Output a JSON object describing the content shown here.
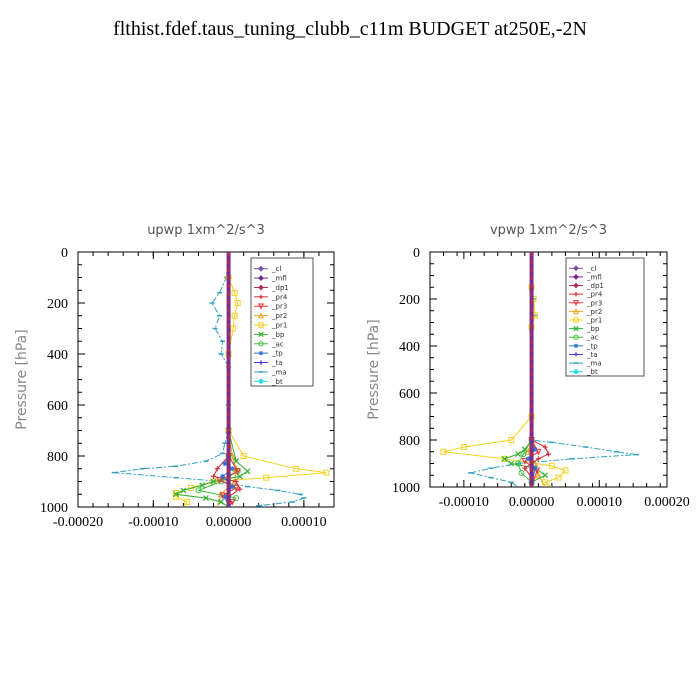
{
  "page_title": "flthist.fdef.taus_tuning_clubb_c11m  BUDGET at250E,-2N",
  "legend_items": [
    {
      "label": "_cl",
      "color": "#7b52ab",
      "marker": "diamond"
    },
    {
      "label": "_mfl",
      "color": "#7b2d8e",
      "marker": "diamond"
    },
    {
      "label": "_dp1",
      "color": "#b0304f",
      "marker": "diamond"
    },
    {
      "label": "_pr4",
      "color": "#d0303a",
      "marker": "plus"
    },
    {
      "label": "_pr3",
      "color": "#ee3333",
      "marker": "tri-down"
    },
    {
      "label": "_pr2",
      "color": "#f0a020",
      "marker": "tri-up"
    },
    {
      "label": "_pr1",
      "color": "#f5d020",
      "marker": "square"
    },
    {
      "label": "_bp",
      "color": "#30b030",
      "marker": "x"
    },
    {
      "label": "_ac",
      "color": "#40c040",
      "marker": "circle"
    },
    {
      "label": "_tp",
      "color": "#3070d0",
      "marker": "star"
    },
    {
      "label": "_ta",
      "color": "#3a3ad0",
      "marker": "plus"
    },
    {
      "label": "_ma",
      "color": "#30a0c0",
      "marker": "dash"
    },
    {
      "label": "_bt",
      "color": "#20e0e0",
      "marker": "diamond"
    }
  ],
  "chart_data": [
    {
      "type": "line",
      "title": "upwp   1xm^2/s^3",
      "ylabel": "Pressure [hPa]",
      "xlabel": "",
      "xlim": [
        -0.0002,
        0.00014
      ],
      "ylim": [
        1000,
        0
      ],
      "xticks": [
        -0.0002,
        -0.0001,
        0.0,
        0.0001
      ],
      "xtick_labels": [
        "-0.00020",
        "-0.00010",
        "0.00000",
        "0.00010"
      ],
      "yticks": [
        0,
        200,
        400,
        600,
        800,
        1000
      ],
      "ytick_labels": [
        "0",
        "200",
        "400",
        "600",
        "800",
        "1000"
      ],
      "legend_position": "top-right",
      "series": [
        {
          "name": "_ma",
          "points": [
            [
              0,
              0
            ],
            [
              -3e-06,
              100
            ],
            [
              -1.2e-05,
              160
            ],
            [
              -2.2e-05,
              200
            ],
            [
              -1.2e-05,
              250
            ],
            [
              -1.8e-05,
              300
            ],
            [
              -8e-06,
              350
            ],
            [
              -1e-05,
              400
            ],
            [
              0,
              450
            ],
            [
              0,
              600
            ],
            [
              0,
              700
            ],
            [
              -5e-06,
              750
            ],
            [
              -8e-06,
              790
            ],
            [
              -3e-05,
              820
            ],
            [
              -7e-05,
              840
            ],
            [
              -0.000115,
              850
            ],
            [
              -0.000152,
              865
            ],
            [
              -7e-05,
              885
            ],
            [
              -1e-05,
              900
            ],
            [
              2.5e-05,
              920
            ],
            [
              6.5e-05,
              935
            ],
            [
              9.5e-05,
              950
            ],
            [
              0.0001,
              965
            ],
            [
              8.5e-05,
              980
            ],
            [
              4e-05,
              995
            ],
            [
              5e-05,
              1000
            ]
          ]
        },
        {
          "name": "_pr1",
          "points": [
            [
              0,
              0
            ],
            [
              0,
              100
            ],
            [
              8e-06,
              160
            ],
            [
              1.2e-05,
              200
            ],
            [
              8e-06,
              250
            ],
            [
              6e-06,
              300
            ],
            [
              0,
              400
            ],
            [
              0,
              700
            ],
            [
              2e-05,
              800
            ],
            [
              9e-05,
              850
            ],
            [
              0.00013,
              865
            ],
            [
              5e-05,
              885
            ],
            [
              -2e-05,
              900
            ],
            [
              -5e-05,
              925
            ],
            [
              -7e-05,
              945
            ],
            [
              -7e-05,
              960
            ],
            [
              -5.5e-05,
              980
            ],
            [
              -6e-05,
              1000
            ]
          ]
        },
        {
          "name": "_pr2",
          "points": [
            [
              0,
              0
            ],
            [
              0,
              700
            ],
            [
              5e-06,
              800
            ],
            [
              1e-05,
              850
            ],
            [
              8e-06,
              900
            ],
            [
              -1e-05,
              950
            ],
            [
              -1.5e-05,
              1000
            ]
          ]
        },
        {
          "name": "_bp",
          "points": [
            [
              0,
              0
            ],
            [
              0,
              700
            ],
            [
              1e-05,
              820
            ],
            [
              2.5e-05,
              860
            ],
            [
              1.5e-05,
              880
            ],
            [
              -2e-05,
              900
            ],
            [
              -3.5e-05,
              915
            ],
            [
              -6e-05,
              935
            ],
            [
              -7e-05,
              950
            ],
            [
              -3e-05,
              965
            ],
            [
              -1e-05,
              980
            ],
            [
              0,
              1000
            ]
          ]
        },
        {
          "name": "_ac",
          "points": [
            [
              0,
              0
            ],
            [
              0,
              800
            ],
            [
              1.2e-05,
              860
            ],
            [
              -1e-05,
              900
            ],
            [
              -4e-05,
              935
            ],
            [
              1e-05,
              965
            ],
            [
              0,
              1000
            ]
          ]
        },
        {
          "name": "_pr4",
          "points": [
            [
              0,
              0
            ],
            [
              0,
              800
            ],
            [
              -1.5e-05,
              850
            ],
            [
              -2e-05,
              880
            ],
            [
              1e-05,
              900
            ],
            [
              1.5e-05,
              930
            ],
            [
              0,
              960
            ],
            [
              0,
              1000
            ]
          ]
        },
        {
          "name": "_pr3",
          "points": [
            [
              0,
              0
            ],
            [
              0,
              800
            ],
            [
              1.2e-05,
              860
            ],
            [
              -1.2e-05,
              895
            ],
            [
              1e-05,
              925
            ],
            [
              -8e-06,
              955
            ],
            [
              5e-06,
              980
            ],
            [
              0,
              1000
            ]
          ]
        },
        {
          "name": "_tp",
          "points": [
            [
              0,
              0
            ],
            [
              0,
              800
            ],
            [
              -5e-06,
              830
            ],
            [
              5e-06,
              850
            ],
            [
              -8e-06,
              880
            ],
            [
              5e-06,
              920
            ],
            [
              -5e-06,
              960
            ],
            [
              0,
              1000
            ]
          ]
        },
        {
          "name": "_ta",
          "points": [
            [
              0,
              0
            ],
            [
              0,
              1000
            ]
          ]
        },
        {
          "name": "_bt",
          "points": [
            [
              0,
              0
            ],
            [
              0,
              1000
            ]
          ]
        },
        {
          "name": "_dp1",
          "points": [
            [
              0,
              0
            ],
            [
              0,
              1000
            ]
          ]
        },
        {
          "name": "_cl",
          "points": [
            [
              0,
              0
            ],
            [
              0,
              1000
            ]
          ]
        },
        {
          "name": "_mfl",
          "points": [
            [
              0,
              0
            ],
            [
              0,
              1000
            ]
          ]
        }
      ]
    },
    {
      "type": "line",
      "title": "vpwp   1xm^2/s^3",
      "ylabel": "Pressure [hPa]",
      "xlabel": "",
      "xlim": [
        -0.00015,
        0.0002
      ],
      "ylim": [
        1000,
        0
      ],
      "xticks": [
        -0.0001,
        0.0,
        0.0001,
        0.0002
      ],
      "xtick_labels": [
        "-0.00010",
        "0.00000",
        "0.00010",
        "0.00020"
      ],
      "yticks": [
        0,
        200,
        400,
        600,
        800,
        1000
      ],
      "ytick_labels": [
        "0",
        "200",
        "400",
        "600",
        "800",
        "1000"
      ],
      "legend_position": "top-right",
      "series": [
        {
          "name": "_ma",
          "points": [
            [
              0,
              0
            ],
            [
              0,
              150
            ],
            [
              3e-06,
              200
            ],
            [
              5e-06,
              270
            ],
            [
              0,
              320
            ],
            [
              0,
              700
            ],
            [
              0,
              800
            ],
            [
              3e-05,
              810
            ],
            [
              8e-05,
              830
            ],
            [
              0.000125,
              850
            ],
            [
              0.000155,
              862
            ],
            [
              6e-05,
              880
            ],
            [
              -2e-05,
              900
            ],
            [
              -6e-05,
              920
            ],
            [
              -9e-05,
              940
            ],
            [
              -6e-05,
              960
            ],
            [
              -3e-05,
              980
            ],
            [
              -2e-05,
              1000
            ]
          ]
        },
        {
          "name": "_pr1",
          "points": [
            [
              0,
              0
            ],
            [
              0,
              150
            ],
            [
              3e-06,
              200
            ],
            [
              5e-06,
              270
            ],
            [
              0,
              320
            ],
            [
              0,
              700
            ],
            [
              -3e-05,
              800
            ],
            [
              -0.0001,
              830
            ],
            [
              -0.00013,
              850
            ],
            [
              -4e-05,
              880
            ],
            [
              3e-05,
              910
            ],
            [
              5e-05,
              930
            ],
            [
              4e-05,
              960
            ],
            [
              2e-05,
              980
            ],
            [
              3e-05,
              1000
            ]
          ]
        },
        {
          "name": "_pr2",
          "points": [
            [
              0,
              0
            ],
            [
              0,
              800
            ],
            [
              -5e-06,
              850
            ],
            [
              5e-06,
              900
            ],
            [
              1e-05,
              950
            ],
            [
              2e-05,
              1000
            ]
          ]
        },
        {
          "name": "_bp",
          "points": [
            [
              0,
              0
            ],
            [
              0,
              800
            ],
            [
              -1e-05,
              840
            ],
            [
              -2e-05,
              860
            ],
            [
              -4e-05,
              880
            ],
            [
              -3e-05,
              900
            ],
            [
              5e-06,
              920
            ],
            [
              2e-05,
              950
            ],
            [
              0,
              980
            ],
            [
              0,
              1000
            ]
          ]
        },
        {
          "name": "_ac",
          "points": [
            [
              0,
              0
            ],
            [
              0,
              800
            ],
            [
              -1.2e-05,
              860
            ],
            [
              -2e-05,
              900
            ],
            [
              -1.5e-05,
              940
            ],
            [
              0,
              980
            ],
            [
              0,
              1000
            ]
          ]
        },
        {
          "name": "_pr4",
          "points": [
            [
              0,
              0
            ],
            [
              0,
              800
            ],
            [
              2e-05,
              830
            ],
            [
              2.5e-05,
              860
            ],
            [
              1e-05,
              880
            ],
            [
              -1e-05,
              920
            ],
            [
              0,
              960
            ],
            [
              0,
              1000
            ]
          ]
        },
        {
          "name": "_pr3",
          "points": [
            [
              0,
              0
            ],
            [
              0,
              800
            ],
            [
              1e-05,
              850
            ],
            [
              -1e-05,
              890
            ],
            [
              8e-06,
              930
            ],
            [
              0,
              1000
            ]
          ]
        },
        {
          "name": "_tp",
          "points": [
            [
              0,
              0
            ],
            [
              0,
              800
            ],
            [
              5e-06,
              840
            ],
            [
              -5e-06,
              880
            ],
            [
              5e-06,
              920
            ],
            [
              0,
              1000
            ]
          ]
        },
        {
          "name": "_ta",
          "points": [
            [
              0,
              0
            ],
            [
              0,
              1000
            ]
          ]
        },
        {
          "name": "_bt",
          "points": [
            [
              0,
              0
            ],
            [
              0,
              1000
            ]
          ]
        },
        {
          "name": "_dp1",
          "points": [
            [
              0,
              0
            ],
            [
              0,
              1000
            ]
          ]
        },
        {
          "name": "_cl",
          "points": [
            [
              0,
              0
            ],
            [
              0,
              1000
            ]
          ]
        },
        {
          "name": "_mfl",
          "points": [
            [
              0,
              0
            ],
            [
              0,
              1000
            ]
          ]
        }
      ]
    }
  ]
}
